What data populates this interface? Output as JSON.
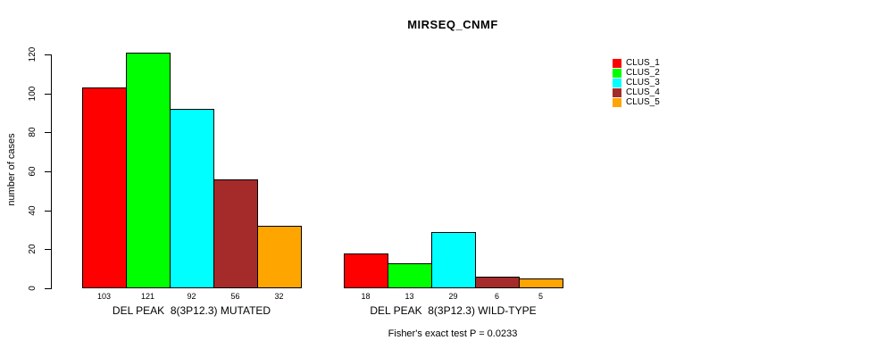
{
  "title": "MIRSEQ_CNMF",
  "chart_data": {
    "type": "bar",
    "title": "MIRSEQ_CNMF",
    "ylabel": "number of cases",
    "xlabel": "",
    "ylim": [
      0,
      120
    ],
    "yticks": [
      0,
      20,
      40,
      60,
      80,
      100,
      120
    ],
    "grid": false,
    "legend_position": "right",
    "categories": [
      "DEL PEAK  8(3P12.3) MUTATED",
      "DEL PEAK  8(3P12.3) WILD-TYPE"
    ],
    "series": [
      {
        "name": "CLUS_1",
        "color": "#FF0000",
        "values": [
          103,
          18
        ]
      },
      {
        "name": "CLUS_2",
        "color": "#00FF00",
        "values": [
          121,
          13
        ]
      },
      {
        "name": "CLUS_3",
        "color": "#00FFFF",
        "values": [
          92,
          29
        ]
      },
      {
        "name": "CLUS_4",
        "color": "#A52A2A",
        "values": [
          56,
          6
        ]
      },
      {
        "name": "CLUS_5",
        "color": "#FFA500",
        "values": [
          32,
          5
        ]
      }
    ],
    "bar_value_labels": [
      [
        103,
        121,
        92,
        56,
        32
      ],
      [
        18,
        13,
        29,
        6,
        5
      ]
    ],
    "annotation": "Fisher's exact test P = 0.0233",
    "axis_color": "#000000",
    "bar_border_color": "#000000"
  }
}
